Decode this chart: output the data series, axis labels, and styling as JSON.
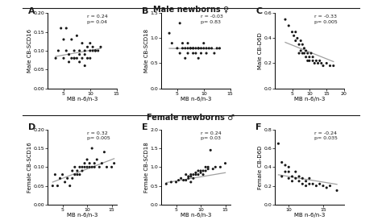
{
  "title_top": "Male newborns ♀",
  "title_bottom": "Female newborns ♂",
  "panels": [
    {
      "label": "A",
      "ylabel": "Male CB-SCD16",
      "xlabel": "MB n-6/n-3",
      "r_text": "r = 0.24",
      "p_text": "p= 0.04",
      "xlim": [
        2,
        15
      ],
      "ylim": [
        0.0,
        0.2
      ],
      "xticks": [
        5,
        10,
        15
      ],
      "yticks": [
        0.0,
        0.05,
        0.1,
        0.15,
        0.2
      ],
      "ytick_labels": [
        "0.00",
        "0.05",
        "0.10",
        "0.15",
        "0.20"
      ],
      "slope": 0.0025,
      "intercept": 0.076,
      "x_data": [
        3.5,
        4.0,
        4.5,
        5.0,
        5.0,
        5.5,
        5.5,
        6.0,
        6.0,
        6.5,
        6.5,
        7.0,
        7.0,
        7.0,
        7.5,
        7.5,
        8.0,
        8.0,
        8.0,
        8.5,
        8.5,
        9.0,
        9.0,
        9.0,
        9.5,
        9.5,
        10.0,
        10.0,
        10.0,
        10.5,
        10.5,
        11.0,
        11.0,
        11.5,
        12.0
      ],
      "y_data": [
        0.08,
        0.1,
        0.16,
        0.13,
        0.08,
        0.1,
        0.16,
        0.09,
        0.07,
        0.13,
        0.08,
        0.08,
        0.08,
        0.1,
        0.14,
        0.08,
        0.07,
        0.09,
        0.1,
        0.08,
        0.12,
        0.09,
        0.1,
        0.06,
        0.08,
        0.11,
        0.1,
        0.08,
        0.12,
        0.1,
        0.11,
        0.1,
        0.1,
        0.1,
        0.11
      ]
    },
    {
      "label": "B",
      "ylabel": "Male CB-SCD18",
      "xlabel": "MB n-6/n-3",
      "r_text": "r = -0.03",
      "p_text": "p= 0.83",
      "xlim": [
        2,
        15
      ],
      "ylim": [
        0.0,
        1.5
      ],
      "xticks": [
        5,
        10,
        15
      ],
      "yticks": [
        0.0,
        0.5,
        1.0,
        1.5
      ],
      "ytick_labels": [
        "0.0",
        "0.5",
        "1.0",
        "1.5"
      ],
      "slope": -0.001,
      "intercept": 0.8,
      "x_data": [
        3.5,
        4.0,
        5.0,
        5.5,
        5.5,
        6.0,
        6.0,
        6.5,
        6.5,
        7.0,
        7.0,
        7.0,
        7.5,
        7.5,
        8.0,
        8.0,
        8.0,
        8.5,
        8.5,
        9.0,
        9.0,
        9.0,
        9.5,
        9.5,
        10.0,
        10.0,
        10.5,
        10.5,
        11.0,
        11.5,
        12.0,
        12.5,
        13.0
      ],
      "y_data": [
        1.1,
        0.9,
        0.8,
        1.3,
        0.7,
        0.8,
        0.9,
        0.8,
        0.6,
        0.9,
        0.8,
        0.7,
        0.8,
        0.8,
        0.7,
        0.8,
        0.8,
        0.7,
        0.8,
        0.8,
        0.8,
        0.6,
        0.7,
        0.8,
        0.8,
        0.9,
        0.8,
        0.7,
        0.8,
        0.8,
        0.7,
        0.8,
        0.8
      ]
    },
    {
      "label": "C",
      "ylabel": "Male CB-D6D",
      "xlabel": "MB n-6/n-3",
      "r_text": "r = -0.33",
      "p_text": "p= 0.005",
      "xlim": [
        0,
        20
      ],
      "ylim": [
        0.0,
        0.6
      ],
      "xticks": [
        5,
        10,
        15,
        20
      ],
      "yticks": [
        0.0,
        0.2,
        0.4,
        0.6
      ],
      "ytick_labels": [
        "0.0",
        "0.2",
        "0.4",
        "0.6"
      ],
      "slope": -0.011,
      "intercept": 0.4,
      "x_data": [
        3.0,
        4.0,
        5.0,
        5.5,
        6.0,
        6.0,
        6.5,
        7.0,
        7.0,
        7.5,
        7.5,
        8.0,
        8.0,
        8.5,
        8.5,
        9.0,
        9.0,
        9.5,
        9.5,
        10.0,
        10.0,
        10.5,
        11.0,
        11.0,
        11.5,
        12.0,
        12.5,
        13.0,
        13.5,
        14.0,
        15.0,
        16.0,
        17.0
      ],
      "y_data": [
        0.55,
        0.5,
        0.45,
        0.42,
        0.38,
        0.45,
        0.4,
        0.35,
        0.28,
        0.3,
        0.38,
        0.28,
        0.35,
        0.28,
        0.32,
        0.25,
        0.3,
        0.28,
        0.22,
        0.25,
        0.22,
        0.28,
        0.22,
        0.25,
        0.2,
        0.22,
        0.2,
        0.22,
        0.2,
        0.18,
        0.2,
        0.18,
        0.18
      ]
    },
    {
      "label": "D",
      "ylabel": "Female CB-SCD16",
      "xlabel": "MB n-6/n-3",
      "r_text": "r = 0.32",
      "p_text": "p= 0.005",
      "xlim": [
        2,
        16
      ],
      "ylim": [
        0.0,
        0.2
      ],
      "xticks": [
        5,
        10,
        15
      ],
      "yticks": [
        0.0,
        0.05,
        0.1,
        0.15,
        0.2
      ],
      "ytick_labels": [
        "0.00",
        "0.05",
        "0.10",
        "0.15",
        "0.20"
      ],
      "slope": 0.005,
      "intercept": 0.045,
      "x_data": [
        3.0,
        3.5,
        4.0,
        4.5,
        5.0,
        5.5,
        6.0,
        6.5,
        7.0,
        7.0,
        7.5,
        7.5,
        8.0,
        8.0,
        8.5,
        8.5,
        9.0,
        9.0,
        9.5,
        9.5,
        10.0,
        10.0,
        10.5,
        10.5,
        11.0,
        11.0,
        11.5,
        11.5,
        12.0,
        12.5,
        13.0,
        13.5,
        14.0,
        15.0,
        15.5
      ],
      "y_data": [
        0.05,
        0.08,
        0.05,
        0.07,
        0.08,
        0.06,
        0.07,
        0.05,
        0.07,
        0.09,
        0.08,
        0.1,
        0.08,
        0.09,
        0.1,
        0.08,
        0.09,
        0.1,
        0.1,
        0.11,
        0.1,
        0.12,
        0.1,
        0.11,
        0.1,
        0.15,
        0.1,
        0.11,
        0.12,
        0.1,
        0.11,
        0.14,
        0.1,
        0.1,
        0.11
      ]
    },
    {
      "label": "E",
      "ylabel": "Female CB-SCD18",
      "xlabel": "MB n-6/n-3",
      "r_text": "r = 0.24",
      "p_text": "p= 0.03",
      "xlim": [
        2,
        16
      ],
      "ylim": [
        0.0,
        2.0
      ],
      "xticks": [
        5,
        10,
        15
      ],
      "yticks": [
        0.0,
        0.5,
        1.0,
        1.5,
        2.0
      ],
      "ytick_labels": [
        "0.0",
        "0.5",
        "1.0",
        "1.5",
        "2.0"
      ],
      "slope": 0.022,
      "intercept": 0.52,
      "x_data": [
        3.0,
        4.0,
        5.0,
        5.5,
        6.0,
        6.5,
        7.0,
        7.0,
        7.5,
        7.5,
        8.0,
        8.0,
        8.0,
        8.5,
        8.5,
        9.0,
        9.0,
        9.5,
        9.5,
        10.0,
        10.0,
        10.5,
        10.5,
        11.0,
        11.0,
        11.5,
        11.5,
        12.0,
        12.5,
        13.0,
        14.0,
        15.0
      ],
      "y_data": [
        0.55,
        0.6,
        0.6,
        0.65,
        0.7,
        0.65,
        0.8,
        0.65,
        0.75,
        0.7,
        0.8,
        0.75,
        0.6,
        0.8,
        0.7,
        0.85,
        0.8,
        0.8,
        0.9,
        0.85,
        0.9,
        0.9,
        0.8,
        1.0,
        0.9,
        0.95,
        1.0,
        1.45,
        0.95,
        1.0,
        1.0,
        1.1
      ]
    },
    {
      "label": "F",
      "ylabel": "Female CB-D6D",
      "xlabel": "MB n-6/n-3",
      "r_text": "r = -0.24",
      "p_text": "p= 0.035",
      "xlim": [
        8,
        18
      ],
      "ylim": [
        0.0,
        0.8
      ],
      "xticks": [
        10,
        15
      ],
      "yticks": [
        0.0,
        0.2,
        0.4,
        0.6,
        0.8
      ],
      "ytick_labels": [
        "0.0",
        "0.2",
        "0.4",
        "0.6",
        "0.8"
      ],
      "slope": -0.012,
      "intercept": 0.42,
      "x_data": [
        8.5,
        9.0,
        9.0,
        9.5,
        9.5,
        10.0,
        10.0,
        10.0,
        10.5,
        10.5,
        11.0,
        11.0,
        11.5,
        11.5,
        12.0,
        12.0,
        12.5,
        12.5,
        13.0,
        13.0,
        13.5,
        14.0,
        14.5,
        15.0,
        15.5,
        16.0,
        17.0
      ],
      "y_data": [
        0.65,
        0.3,
        0.45,
        0.35,
        0.42,
        0.28,
        0.35,
        0.4,
        0.3,
        0.25,
        0.28,
        0.35,
        0.25,
        0.3,
        0.22,
        0.28,
        0.25,
        0.2,
        0.22,
        0.28,
        0.22,
        0.2,
        0.22,
        0.2,
        0.18,
        0.2,
        0.15
      ]
    }
  ],
  "dot_color": "#1a1a1a",
  "line_color": "#a0a0a0",
  "dot_size": 5,
  "bg_color": "#ffffff",
  "text_color": "#1a1a1a"
}
